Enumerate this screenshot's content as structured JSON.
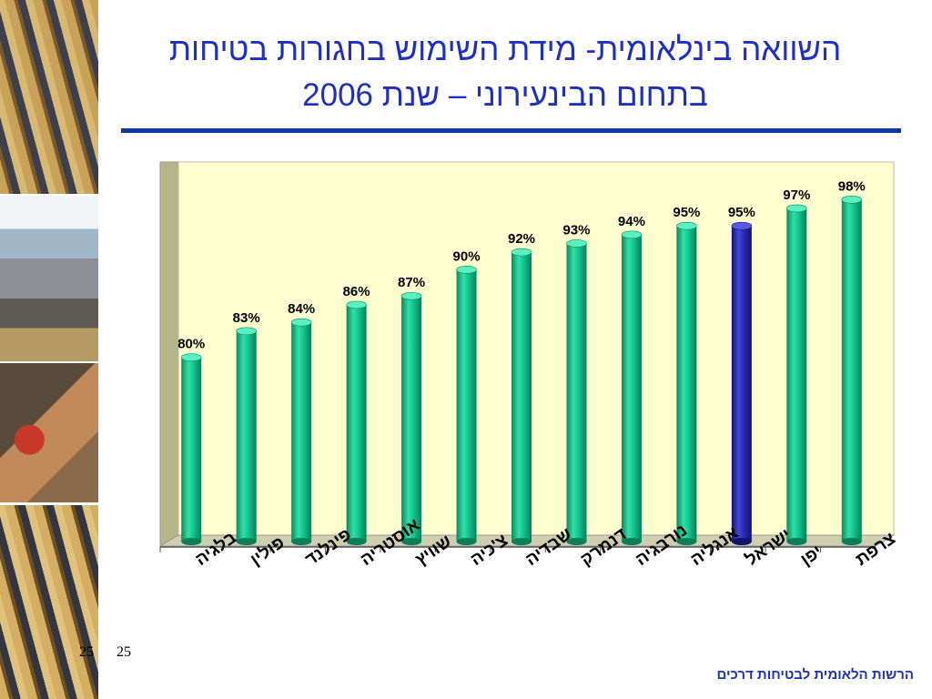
{
  "title": {
    "line1": "השוואה בינלאומית- מידת השימוש בחגורות בטיחות",
    "line2": "בתחום הבינעירוני – שנת 2006"
  },
  "page_numbers": [
    "25",
    "25"
  ],
  "footer": "הרשות הלאומית לבטיחות דרכים",
  "colors": {
    "bar": "#12c08a",
    "bar_highlight": "#2a2ab4",
    "plot_bg": "#ffffd0",
    "title": "#1f2fc4"
  },
  "chart_data": {
    "type": "bar",
    "categories": [
      "בלגיה",
      "פולין",
      "פינלנד",
      "אוסטריה",
      "שוויץ",
      "צ'כיה",
      "שבדיה",
      "דנמרק",
      "נורבגיה",
      "אנגליה",
      "ישראל",
      "יפן",
      "צרפת"
    ],
    "values": [
      80,
      83,
      84,
      86,
      87,
      90,
      92,
      93,
      94,
      95,
      95,
      97,
      98
    ],
    "data_labels": [
      "80%",
      "83%",
      "84%",
      "86%",
      "87%",
      "90%",
      "92%",
      "93%",
      "94%",
      "95%",
      "95%",
      "97%",
      "98%"
    ],
    "highlight": "ישראל",
    "ylim": [
      59,
      100
    ],
    "grid": false,
    "legend": "none",
    "xlabel": "",
    "ylabel": ""
  }
}
